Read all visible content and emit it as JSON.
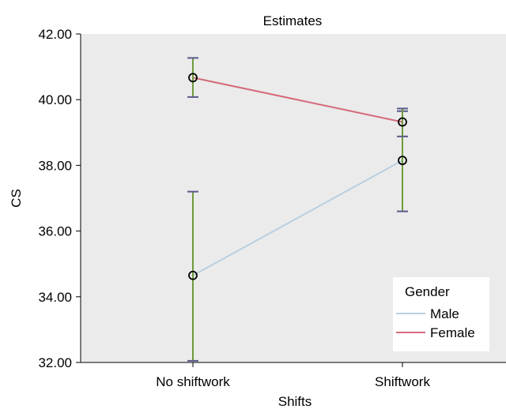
{
  "chart_data": {
    "type": "line",
    "title": "Estimates",
    "xlabel": "Shifts",
    "ylabel": "CS",
    "categories": [
      "No shiftwork",
      "Shiftwork"
    ],
    "ylim": [
      32.0,
      42.0
    ],
    "yticks": [
      "32.00",
      "34.00",
      "36.00",
      "38.00",
      "40.00",
      "42.00"
    ],
    "legend": {
      "title": "Gender",
      "position": "bottom-right"
    },
    "series": [
      {
        "name": "Male",
        "color": "#b9cfe0",
        "values": [
          34.65,
          38.15
        ],
        "err_low": [
          32.05,
          36.6
        ],
        "err_high": [
          37.2,
          39.65
        ]
      },
      {
        "name": "Female",
        "color": "#d46a7a",
        "values": [
          40.67,
          39.32
        ],
        "err_low": [
          40.08,
          38.88
        ],
        "err_high": [
          41.27,
          39.73
        ]
      }
    ],
    "error_bar_color": "#6f9a3c",
    "error_cap_color": "#5a5a8a",
    "background": "#ebebeb",
    "grid": false
  }
}
